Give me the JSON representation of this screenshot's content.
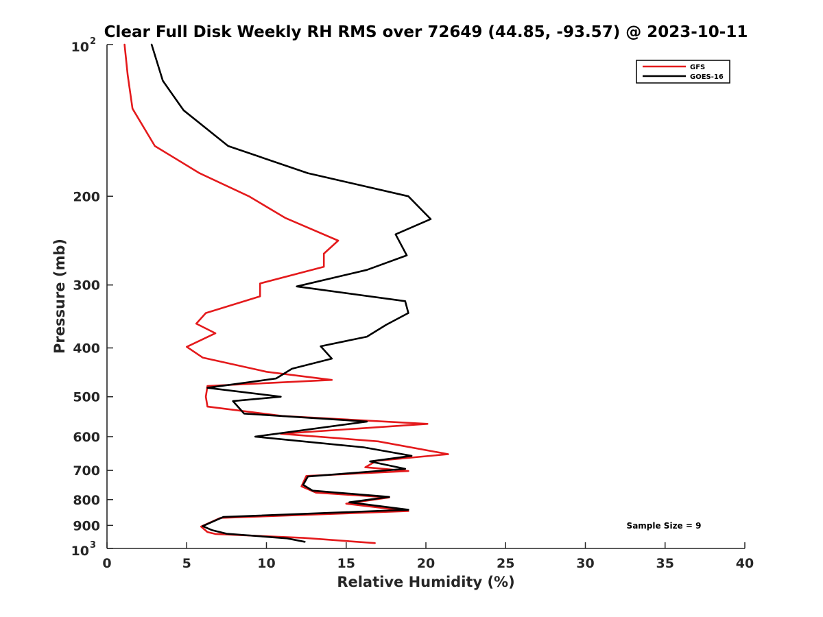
{
  "chart_data": {
    "type": "line",
    "title": "Clear Full Disk Weekly RH RMS over 72649 (44.85, -93.57) @ 2023-10-11",
    "xlabel": "Relative Humidity (%)",
    "ylabel": "Pressure (mb)",
    "xlim": [
      0,
      40
    ],
    "ylim": [
      100,
      1000
    ],
    "y_scale": "log",
    "y_reversed": true,
    "grid": false,
    "legend_position": "top-right",
    "x_ticks": [
      "0",
      "5",
      "10",
      "15",
      "20",
      "25",
      "30",
      "35",
      "40"
    ],
    "y_ticks": [
      {
        "value": 100,
        "base": "10",
        "exp": "2"
      },
      {
        "value": 200,
        "label": "200"
      },
      {
        "value": 300,
        "label": "300"
      },
      {
        "value": 400,
        "label": "400"
      },
      {
        "value": 500,
        "label": "500"
      },
      {
        "value": 600,
        "label": "600"
      },
      {
        "value": 700,
        "label": "700"
      },
      {
        "value": 800,
        "label": "800"
      },
      {
        "value": 900,
        "label": "900"
      },
      {
        "value": 1000,
        "base": "10",
        "exp": "3"
      }
    ],
    "annotation": "Sample Size = 9",
    "series": [
      {
        "name": "GFS",
        "color": "#e41a1c",
        "points": [
          [
            1.1,
            100
          ],
          [
            1.3,
            115
          ],
          [
            1.6,
            134
          ],
          [
            3.0,
            159
          ],
          [
            5.8,
            180
          ],
          [
            8.9,
            200
          ],
          [
            11.2,
            221
          ],
          [
            14.5,
            245
          ],
          [
            13.6,
            260
          ],
          [
            13.6,
            276
          ],
          [
            9.6,
            298
          ],
          [
            9.6,
            316
          ],
          [
            6.2,
            341
          ],
          [
            5.6,
            358
          ],
          [
            6.8,
            374
          ],
          [
            5.0,
            398
          ],
          [
            6.0,
            418
          ],
          [
            10.0,
            446
          ],
          [
            14.1,
            463
          ],
          [
            6.3,
            476
          ],
          [
            6.2,
            500
          ],
          [
            6.3,
            523
          ],
          [
            11.0,
            546
          ],
          [
            20.1,
            566
          ],
          [
            10.9,
            592
          ],
          [
            17.0,
            613
          ],
          [
            21.4,
            650
          ],
          [
            16.9,
            670
          ],
          [
            16.2,
            690
          ],
          [
            18.9,
            702
          ],
          [
            12.5,
            718
          ],
          [
            12.2,
            753
          ],
          [
            13.1,
            775
          ],
          [
            17.7,
            792
          ],
          [
            15.0,
            815
          ],
          [
            18.9,
            843
          ],
          [
            7.1,
            870
          ],
          [
            5.9,
            905
          ],
          [
            6.3,
            928
          ],
          [
            6.8,
            936
          ],
          [
            12.3,
            953
          ],
          [
            16.8,
            976
          ]
        ]
      },
      {
        "name": "GOES-16",
        "color": "#000000",
        "points": [
          [
            2.8,
            100
          ],
          [
            3.5,
            118
          ],
          [
            4.8,
            135
          ],
          [
            7.6,
            159
          ],
          [
            12.6,
            180
          ],
          [
            18.9,
            200
          ],
          [
            20.3,
            222
          ],
          [
            18.1,
            238
          ],
          [
            18.8,
            262
          ],
          [
            16.3,
            280
          ],
          [
            11.9,
            302
          ],
          [
            18.7,
            323
          ],
          [
            18.9,
            341
          ],
          [
            17.5,
            360
          ],
          [
            16.3,
            380
          ],
          [
            13.4,
            397
          ],
          [
            14.1,
            420
          ],
          [
            11.6,
            440
          ],
          [
            10.6,
            460
          ],
          [
            6.3,
            480
          ],
          [
            10.9,
            500
          ],
          [
            7.9,
            510
          ],
          [
            8.6,
            540
          ],
          [
            16.3,
            560
          ],
          [
            9.3,
            600
          ],
          [
            16.1,
            630
          ],
          [
            19.1,
            655
          ],
          [
            16.5,
            672
          ],
          [
            18.7,
            695
          ],
          [
            12.6,
            720
          ],
          [
            12.3,
            748
          ],
          [
            12.9,
            768
          ],
          [
            17.7,
            790
          ],
          [
            15.2,
            810
          ],
          [
            18.9,
            838
          ],
          [
            7.3,
            866
          ],
          [
            6.0,
            903
          ],
          [
            6.6,
            920
          ],
          [
            7.5,
            935
          ],
          [
            11.3,
            955
          ],
          [
            12.4,
            970
          ]
        ]
      }
    ]
  }
}
